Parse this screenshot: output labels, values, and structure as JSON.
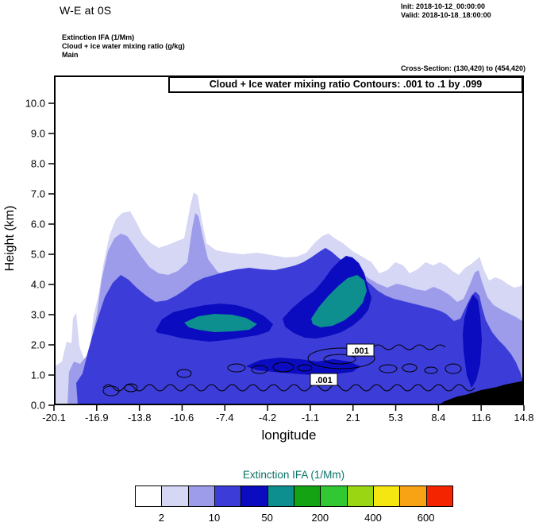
{
  "header": {
    "title": "W-E at 0S",
    "init": "Init: 2018-10-12_00:00:00",
    "valid": "Valid: 2018-10-18_18:00:00",
    "field_line1": "Extinction IFA  (1/Mm)",
    "field_line2": "Cloud + ice water mixing ratio   (g/kg)",
    "field_line3": "Main",
    "cross_section": "Cross-Section: (130,420) to (454,420)"
  },
  "chart_data": {
    "type": "heatmap",
    "variant": "filled-contour vertical cross-section (west-east at 0S)",
    "title": "Cloud + Ice water mixing ratio Contours: .001 to .1 by .099",
    "xlabel": "longitude",
    "ylabel": "Height (km)",
    "x_tick_labels": [
      "-20.1",
      "-16.9",
      "-13.8",
      "-10.6",
      "-7.4",
      "-4.2",
      "-1.1",
      "2.1",
      "5.3",
      "8.4",
      "11.6",
      "14.8"
    ],
    "y_tick_labels": [
      "0.0",
      "1.0",
      "2.0",
      "3.0",
      "4.0",
      "5.0",
      "6.0",
      "7.0",
      "8.0",
      "9.0",
      "10.0"
    ],
    "xlim": [
      -20.1,
      14.8
    ],
    "ylim": [
      0,
      10.9
    ],
    "grid": false,
    "fill_variable": "Extinction IFA (1/Mm), shaded with colorbar levels",
    "line_variable": "Cloud + ice water mixing ratio (g/kg), black line contours",
    "line_contour_levels": ".001 to .1 by .099",
    "contour_line_labels": [
      ".001",
      ".001"
    ],
    "terrain_color": "#000000",
    "field_description": "Extinction plume fills 0-7 km: light shading (2-10 1/Mm) peaks near 6.3 km around lon -16.5 and 7.1 km around lon -10.7; broad shaded deck to ~5 km across lon -18 to 12; dense blue core (50-200 1/Mm) at 2-4 km between lon -13 and 2 with dark-blue/teal maxima (200-400 1/Mm) near lon -4 to 0 at 2.5-4.5 km; narrow dark column near lon 9.5 below 3.5 km; thin cloud mixing-ratio (.001) contours snake along 0.5-1.8 km; black terrain rises along the bottom from lon ~9 to 14.8."
  },
  "colorbar": {
    "title": "Extinction IFA  (1/Mm)",
    "title_color": "#0a7268",
    "tick_labels": [
      "2",
      "10",
      "50",
      "200",
      "400",
      "600"
    ],
    "colors": [
      "#ffffff",
      "#d6d6f5",
      "#9c9cea",
      "#3c3cd8",
      "#0b0bbf",
      "#0e8f8f",
      "#13a313",
      "#32c832",
      "#9bd613",
      "#f5e612",
      "#f7a313",
      "#f52400"
    ]
  }
}
